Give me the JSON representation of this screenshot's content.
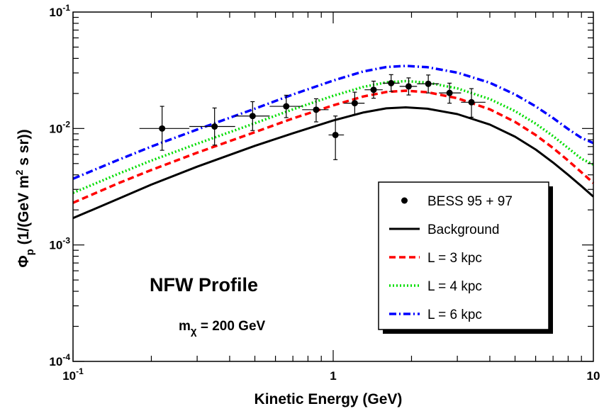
{
  "chart_data": {
    "type": "line",
    "xlabel": "Kinetic Energy (GeV)",
    "ylabel_prefix": "Φ",
    "ylabel_sub": "p",
    "ylabel_unit_a": " (1/(GeV m",
    "ylabel_sup": "2",
    "ylabel_unit_b": " s sr))",
    "x_scale": "log",
    "y_scale": "log",
    "xlim": [
      0.1,
      10
    ],
    "ylim": [
      0.0001,
      0.1
    ],
    "x_ticks": [
      {
        "value": 0.1,
        "base": "10",
        "exp": "-1"
      },
      {
        "value": 1,
        "base": "1",
        "exp": ""
      },
      {
        "value": 10,
        "base": "10",
        "exp": ""
      }
    ],
    "y_ticks": [
      {
        "value": 0.1,
        "base": "10",
        "exp": "-1"
      },
      {
        "value": 0.01,
        "base": "10",
        "exp": "-2"
      },
      {
        "value": 0.001,
        "base": "10",
        "exp": "-3"
      },
      {
        "value": 0.0001,
        "base": "10",
        "exp": "-4"
      }
    ],
    "grid": false,
    "legend_position": "bottom-right",
    "annotations": {
      "profile": "NFW Profile",
      "mass_prefix": "m",
      "mass_sub": "χ",
      "mass_value": " = 200 GeV"
    },
    "series": [
      {
        "name": "Background",
        "type": "line",
        "color": "#000000",
        "dash": "solid",
        "x": [
          0.1,
          0.15,
          0.2,
          0.3,
          0.5,
          0.7,
          1.0,
          1.3,
          1.6,
          1.9,
          2.3,
          3.0,
          4.0,
          5.0,
          6.0,
          7.0,
          8.0,
          9.0,
          10.0
        ],
        "y": [
          0.0017,
          0.0025,
          0.0033,
          0.0047,
          0.0071,
          0.0091,
          0.0117,
          0.0137,
          0.0149,
          0.0152,
          0.0148,
          0.0133,
          0.0108,
          0.0085,
          0.0066,
          0.0051,
          0.004,
          0.0032,
          0.0026
        ]
      },
      {
        "name": "L = 3 kpc",
        "type": "line",
        "color": "#ff0000",
        "dash": "dashed",
        "x": [
          0.1,
          0.15,
          0.2,
          0.3,
          0.5,
          0.7,
          1.0,
          1.3,
          1.6,
          1.9,
          2.3,
          3.0,
          4.0,
          5.0,
          6.0,
          7.0,
          8.0,
          9.0,
          10.0
        ],
        "y": [
          0.0023,
          0.0034,
          0.0044,
          0.0062,
          0.0093,
          0.0122,
          0.0158,
          0.0188,
          0.0206,
          0.0211,
          0.0205,
          0.0182,
          0.0146,
          0.0114,
          0.0088,
          0.0068,
          0.0053,
          0.0042,
          0.0034
        ]
      },
      {
        "name": "L = 4 kpc",
        "type": "line",
        "color": "#00dd00",
        "dash": "dotted",
        "x": [
          0.1,
          0.15,
          0.2,
          0.3,
          0.5,
          0.7,
          1.0,
          1.3,
          1.6,
          1.9,
          2.3,
          3.0,
          4.0,
          5.0,
          6.0,
          7.0,
          8.0,
          9.0,
          10.0
        ],
        "y": [
          0.0028,
          0.0041,
          0.0053,
          0.0074,
          0.0111,
          0.0146,
          0.0191,
          0.0227,
          0.0249,
          0.0255,
          0.0248,
          0.0221,
          0.0179,
          0.0141,
          0.011,
          0.0086,
          0.0068,
          0.0055,
          0.0049
        ]
      },
      {
        "name": "L = 6 kpc",
        "type": "line",
        "color": "#0000ff",
        "dash": "dashdot",
        "x": [
          0.1,
          0.15,
          0.2,
          0.3,
          0.5,
          0.7,
          1.0,
          1.3,
          1.6,
          1.9,
          2.3,
          3.0,
          4.0,
          5.0,
          6.0,
          7.0,
          8.0,
          9.0,
          10.0
        ],
        "y": [
          0.0037,
          0.0054,
          0.007,
          0.0098,
          0.0148,
          0.0196,
          0.0258,
          0.0308,
          0.0337,
          0.0345,
          0.0336,
          0.0302,
          0.0247,
          0.0196,
          0.0155,
          0.0123,
          0.0099,
          0.0083,
          0.0075
        ]
      },
      {
        "name": "BESS 95 + 97",
        "type": "scatter",
        "color": "#000000",
        "points": [
          {
            "x": 0.22,
            "xlo": 0.18,
            "xhi": 0.28,
            "y": 0.01,
            "ylo": 0.0065,
            "yhi": 0.0155
          },
          {
            "x": 0.35,
            "xlo": 0.28,
            "xhi": 0.42,
            "y": 0.0104,
            "ylo": 0.0072,
            "yhi": 0.015
          },
          {
            "x": 0.49,
            "xlo": 0.42,
            "xhi": 0.57,
            "y": 0.0128,
            "ylo": 0.0096,
            "yhi": 0.017
          },
          {
            "x": 0.66,
            "xlo": 0.57,
            "xhi": 0.76,
            "y": 0.0155,
            "ylo": 0.0124,
            "yhi": 0.0193
          },
          {
            "x": 0.86,
            "xlo": 0.76,
            "xhi": 0.96,
            "y": 0.0145,
            "ylo": 0.0114,
            "yhi": 0.018
          },
          {
            "x": 1.02,
            "xlo": 0.96,
            "xhi": 1.1,
            "y": 0.0088,
            "ylo": 0.0054,
            "yhi": 0.0128
          },
          {
            "x": 1.21,
            "xlo": 1.1,
            "xhi": 1.32,
            "y": 0.0165,
            "ylo": 0.0132,
            "yhi": 0.0205
          },
          {
            "x": 1.43,
            "xlo": 1.32,
            "xhi": 1.55,
            "y": 0.0215,
            "ylo": 0.0182,
            "yhi": 0.0255
          },
          {
            "x": 1.67,
            "xlo": 1.55,
            "xhi": 1.8,
            "y": 0.0245,
            "ylo": 0.0208,
            "yhi": 0.029
          },
          {
            "x": 1.95,
            "xlo": 1.8,
            "xhi": 2.1,
            "y": 0.023,
            "ylo": 0.0194,
            "yhi": 0.0272
          },
          {
            "x": 2.32,
            "xlo": 2.1,
            "xhi": 2.55,
            "y": 0.0242,
            "ylo": 0.0202,
            "yhi": 0.0288
          },
          {
            "x": 2.8,
            "xlo": 2.55,
            "xhi": 3.1,
            "y": 0.0202,
            "ylo": 0.0165,
            "yhi": 0.0245
          },
          {
            "x": 3.4,
            "xlo": 3.1,
            "xhi": 3.85,
            "y": 0.0168,
            "ylo": 0.0125,
            "yhi": 0.022
          }
        ]
      }
    ],
    "legend": [
      {
        "label": "BESS 95 + 97",
        "kind": "marker",
        "color": "#000000",
        "dash": "solid"
      },
      {
        "label": "Background",
        "kind": "line",
        "color": "#000000",
        "dash": "solid"
      },
      {
        "label": "L = 3 kpc",
        "kind": "line",
        "color": "#ff0000",
        "dash": "dashed"
      },
      {
        "label": "L = 4 kpc",
        "kind": "line",
        "color": "#00dd00",
        "dash": "dotted"
      },
      {
        "label": "L = 6 kpc",
        "kind": "line",
        "color": "#0000ff",
        "dash": "dashdot"
      }
    ]
  }
}
